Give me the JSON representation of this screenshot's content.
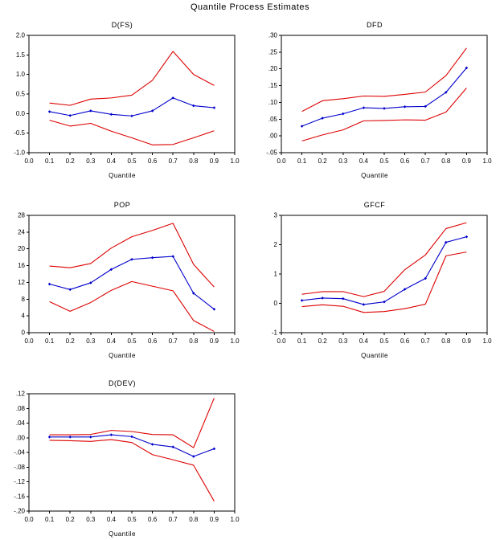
{
  "page": {
    "title": "Quantile Process Estimates"
  },
  "colors": {
    "estimate_line": "#0000cc",
    "band_line": "#dd0000",
    "axis": "#000000",
    "text": "#000000",
    "background": "#ffffff"
  },
  "chart_data": [
    {
      "type": "line",
      "title": "D(FS)",
      "xlabel": "Quantile",
      "legend": "none",
      "grid": false,
      "x": [
        0.1,
        0.2,
        0.3,
        0.4,
        0.5,
        0.6,
        0.7,
        0.8,
        0.9
      ],
      "xlim": [
        0.0,
        1.0
      ],
      "xtick_values": [
        0.0,
        0.1,
        0.2,
        0.3,
        0.4,
        0.5,
        0.6,
        0.7,
        0.8,
        0.9,
        1.0
      ],
      "xtick_labels": [
        "0.0",
        "0.1",
        "0.2",
        "0.3",
        "0.4",
        "0.5",
        "0.6",
        "0.7",
        "0.8",
        "0.9",
        "1.0"
      ],
      "ylim": [
        -1.0,
        2.0
      ],
      "ytick_values": [
        2.0,
        1.5,
        1.0,
        0.5,
        0.0,
        -0.5,
        -1.0
      ],
      "ytick_labels": [
        "2.0",
        "1.5",
        "1.0",
        "0.5",
        "0.0",
        "-0.5",
        "-1.0"
      ],
      "series": [
        {
          "name": "upper confidence band",
          "color": "band",
          "markers": false,
          "values": [
            0.27,
            0.21,
            0.37,
            0.4,
            0.47,
            0.85,
            1.59,
            1.0,
            0.72
          ]
        },
        {
          "name": "quantile estimate",
          "color": "estimate",
          "markers": true,
          "values": [
            0.05,
            -0.05,
            0.07,
            -0.02,
            -0.06,
            0.07,
            0.4,
            0.2,
            0.15
          ]
        },
        {
          "name": "lower confidence band",
          "color": "band",
          "markers": false,
          "values": [
            -0.17,
            -0.32,
            -0.25,
            -0.45,
            -0.62,
            -0.8,
            -0.79,
            -0.62,
            -0.44
          ]
        }
      ]
    },
    {
      "type": "line",
      "title": "DFD",
      "xlabel": "Quantile",
      "legend": "none",
      "grid": false,
      "x": [
        0.1,
        0.2,
        0.3,
        0.4,
        0.5,
        0.6,
        0.7,
        0.8,
        0.9
      ],
      "xlim": [
        0.0,
        1.0
      ],
      "xtick_values": [
        0.0,
        0.1,
        0.2,
        0.3,
        0.4,
        0.5,
        0.6,
        0.7,
        0.8,
        0.9,
        1.0
      ],
      "xtick_labels": [
        "0.0",
        "0.1",
        "0.2",
        "0.3",
        "0.4",
        "0.5",
        "0.6",
        "0.7",
        "0.8",
        "0.9",
        "1.0"
      ],
      "ylim": [
        -0.05,
        0.3
      ],
      "ytick_values": [
        0.3,
        0.25,
        0.2,
        0.15,
        0.1,
        0.05,
        0.0,
        -0.05
      ],
      "ytick_labels": [
        ".30",
        ".25",
        ".20",
        ".15",
        ".10",
        ".05",
        ".00",
        "-.05"
      ],
      "series": [
        {
          "name": "upper confidence band",
          "color": "band",
          "markers": false,
          "values": [
            0.073,
            0.105,
            0.111,
            0.119,
            0.118,
            0.124,
            0.131,
            0.18,
            0.262
          ]
        },
        {
          "name": "quantile estimate",
          "color": "estimate",
          "markers": true,
          "values": [
            0.029,
            0.053,
            0.066,
            0.084,
            0.082,
            0.087,
            0.088,
            0.13,
            0.203
          ]
        },
        {
          "name": "lower confidence band",
          "color": "band",
          "markers": false,
          "values": [
            -0.015,
            0.003,
            0.018,
            0.045,
            0.046,
            0.048,
            0.047,
            0.071,
            0.143
          ]
        }
      ]
    },
    {
      "type": "line",
      "title": "POP",
      "xlabel": "Quantile",
      "legend": "none",
      "grid": false,
      "x": [
        0.1,
        0.2,
        0.3,
        0.4,
        0.5,
        0.6,
        0.7,
        0.8,
        0.9
      ],
      "xlim": [
        0.0,
        1.0
      ],
      "xtick_values": [
        0.0,
        0.1,
        0.2,
        0.3,
        0.4,
        0.5,
        0.6,
        0.7,
        0.8,
        0.9,
        1.0
      ],
      "xtick_labels": [
        "0.0",
        "0.1",
        "0.2",
        "0.3",
        "0.4",
        "0.5",
        "0.6",
        "0.7",
        "0.8",
        "0.9",
        "1.0"
      ],
      "ylim": [
        0,
        28
      ],
      "ytick_values": [
        28,
        24,
        20,
        16,
        12,
        8,
        4,
        0
      ],
      "ytick_labels": [
        "28",
        "24",
        "20",
        "16",
        "12",
        "8",
        "4",
        "0"
      ],
      "series": [
        {
          "name": "upper confidence band",
          "color": "band",
          "markers": false,
          "values": [
            15.9,
            15.5,
            16.5,
            20.2,
            22.9,
            24.4,
            26.1,
            16.3,
            10.9
          ]
        },
        {
          "name": "quantile estimate",
          "color": "estimate",
          "markers": true,
          "values": [
            11.6,
            10.3,
            11.9,
            15.1,
            17.5,
            17.9,
            18.2,
            9.4,
            5.6
          ]
        },
        {
          "name": "lower confidence band",
          "color": "band",
          "markers": false,
          "values": [
            7.4,
            5.1,
            7.2,
            10.1,
            12.2,
            11.1,
            10.0,
            2.9,
            0.3
          ]
        }
      ]
    },
    {
      "type": "line",
      "title": "GFCF",
      "xlabel": "Quantile",
      "legend": "none",
      "grid": false,
      "x": [
        0.1,
        0.2,
        0.3,
        0.4,
        0.5,
        0.6,
        0.7,
        0.8,
        0.9
      ],
      "xlim": [
        0.0,
        1.0
      ],
      "xtick_values": [
        0.0,
        0.1,
        0.2,
        0.3,
        0.4,
        0.5,
        0.6,
        0.7,
        0.8,
        0.9,
        1.0
      ],
      "xtick_labels": [
        "0.0",
        "0.1",
        "0.2",
        "0.3",
        "0.4",
        "0.5",
        "0.6",
        "0.7",
        "0.8",
        "0.9",
        "1.0"
      ],
      "ylim": [
        -1,
        3
      ],
      "ytick_values": [
        3,
        2,
        1,
        0,
        -1
      ],
      "ytick_labels": [
        "3",
        "2",
        "1",
        "0",
        "-1"
      ],
      "series": [
        {
          "name": "upper confidence band",
          "color": "band",
          "markers": false,
          "values": [
            0.31,
            0.4,
            0.4,
            0.23,
            0.41,
            1.15,
            1.65,
            2.55,
            2.75
          ]
        },
        {
          "name": "quantile estimate",
          "color": "estimate",
          "markers": true,
          "values": [
            0.1,
            0.18,
            0.16,
            -0.04,
            0.05,
            0.48,
            0.85,
            2.08,
            2.27
          ]
        },
        {
          "name": "lower confidence band",
          "color": "band",
          "markers": false,
          "values": [
            -0.11,
            -0.05,
            -0.1,
            -0.31,
            -0.28,
            -0.18,
            -0.03,
            1.62,
            1.75
          ]
        }
      ]
    },
    {
      "type": "line",
      "title": "D(DEV)",
      "xlabel": "Quantile",
      "legend": "none",
      "grid": false,
      "x": [
        0.1,
        0.2,
        0.3,
        0.4,
        0.5,
        0.6,
        0.7,
        0.8,
        0.9
      ],
      "xlim": [
        0.0,
        1.0
      ],
      "xtick_values": [
        0.0,
        0.1,
        0.2,
        0.3,
        0.4,
        0.5,
        0.6,
        0.7,
        0.8,
        0.9,
        1.0
      ],
      "xtick_labels": [
        "0.0",
        "0.1",
        "0.2",
        "0.3",
        "0.4",
        "0.5",
        "0.6",
        "0.7",
        "0.8",
        "0.9",
        "1.0"
      ],
      "ylim": [
        -0.2,
        0.12
      ],
      "ytick_values": [
        0.12,
        0.08,
        0.04,
        0.0,
        -0.04,
        -0.08,
        -0.12,
        -0.16,
        -0.2
      ],
      "ytick_labels": [
        ".12",
        ".08",
        ".04",
        ".00",
        "-.04",
        "-.08",
        "-.12",
        "-.16",
        "-.20"
      ],
      "series": [
        {
          "name": "upper confidence band",
          "color": "band",
          "markers": false,
          "values": [
            0.008,
            0.008,
            0.009,
            0.02,
            0.017,
            0.009,
            0.008,
            -0.027,
            0.108
          ]
        },
        {
          "name": "quantile estimate",
          "color": "estimate",
          "markers": true,
          "values": [
            0.002,
            0.002,
            0.002,
            0.008,
            0.003,
            -0.018,
            -0.025,
            -0.051,
            -0.03
          ]
        },
        {
          "name": "lower confidence band",
          "color": "band",
          "markers": false,
          "values": [
            -0.007,
            -0.008,
            -0.01,
            -0.005,
            -0.013,
            -0.046,
            -0.06,
            -0.075,
            -0.173
          ]
        }
      ]
    }
  ]
}
